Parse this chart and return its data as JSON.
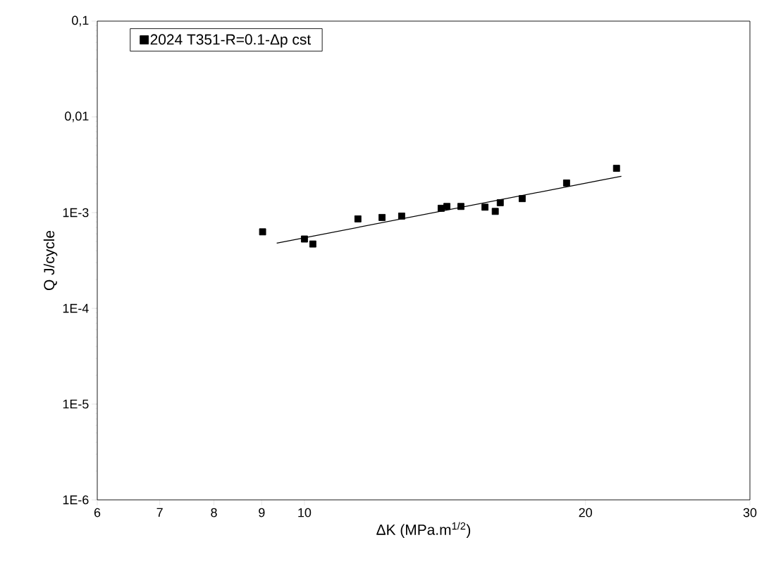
{
  "chart_data": {
    "type": "scatter",
    "xlabel": "ΔK (MPa.m$^{1/2}$)",
    "ylabel": "Q J/cycle",
    "log": "xy",
    "xlim": [
      6,
      30
    ],
    "xticks": [
      6,
      7,
      8,
      9,
      10,
      20,
      30
    ],
    "ylim": [
      1e-06,
      0.1
    ],
    "yticks": [
      {
        "value": 1e-06,
        "label": "1E-6"
      },
      {
        "value": 1e-05,
        "label": "1E-5"
      },
      {
        "value": 0.0001,
        "label": "1E-4"
      },
      {
        "value": 0.001,
        "label": "1E-3"
      },
      {
        "value": 0.01,
        "label": "0,01"
      },
      {
        "value": 0.1,
        "label": "0,1"
      }
    ],
    "legend": "top left",
    "grid": false,
    "series": [
      {
        "name": "2024 T351-R=0.1-Δp cst",
        "color": "#000000",
        "marker": "square",
        "x": [
          9.02,
          10.0,
          10.21,
          11.41,
          12.11,
          12.71,
          14.01,
          14.21,
          14.71,
          15.61,
          16.01,
          16.21,
          17.11,
          19.09,
          21.59
        ],
        "values": [
          0.00063,
          0.00053,
          0.00047,
          0.00086,
          0.00089,
          0.00092,
          0.00111,
          0.00116,
          0.00116,
          0.00114,
          0.00103,
          0.00127,
          0.0014,
          0.00204,
          0.0029
        ]
      },
      {
        "type": "line",
        "color": "#000000",
        "marker": "none",
        "x": [
          9.34,
          21.85
        ],
        "values": [
          0.00048,
          0.0024
        ]
      }
    ]
  }
}
